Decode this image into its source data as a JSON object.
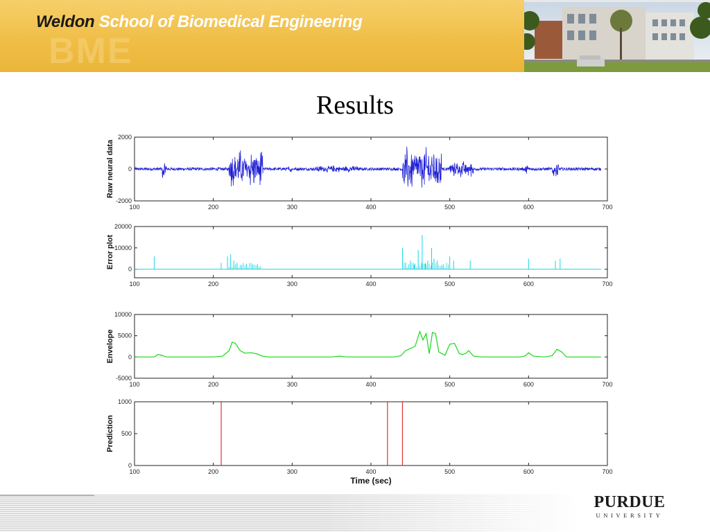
{
  "header": {
    "title_part1": "Weldon",
    "title_part2": "School of Biomedical Engineering",
    "watermark": "BME"
  },
  "slide": {
    "title": "Results"
  },
  "footer": {
    "logo_name": "PURDUE",
    "logo_sub": "UNIVERSITY"
  },
  "colors": {
    "banner": "#f2c14e",
    "raw": "#1f1fd6",
    "error": "#19d6e6",
    "envelope": "#19d619",
    "prediction": "#e03030"
  },
  "chart_data": [
    {
      "type": "line",
      "ylabel": "Raw neural data",
      "xlim": [
        100,
        700
      ],
      "ylim": [
        -2000,
        2000
      ],
      "xticks": [
        "100",
        "200",
        "300",
        "400",
        "500",
        "600",
        "700"
      ],
      "yticks": [
        "2000",
        "0",
        "-2000"
      ],
      "ytick_values": [
        2000,
        0,
        -2000
      ],
      "color": "#1f1fd6",
      "baseline": 0,
      "style": "signal",
      "bursts": [
        {
          "start": 135,
          "end": 140,
          "amp": 700
        },
        {
          "start": 220,
          "end": 263,
          "amp": 1300
        },
        {
          "start": 295,
          "end": 300,
          "amp": 250
        },
        {
          "start": 330,
          "end": 384,
          "amp": 250
        },
        {
          "start": 440,
          "end": 490,
          "amp": 1500
        },
        {
          "start": 500,
          "end": 530,
          "amp": 600
        },
        {
          "start": 595,
          "end": 600,
          "amp": 300
        },
        {
          "start": 630,
          "end": 638,
          "amp": 600
        }
      ]
    },
    {
      "type": "line",
      "ylabel": "Error plot",
      "xlim": [
        100,
        700
      ],
      "ylim": [
        -4000,
        20000
      ],
      "xticks": [
        "100",
        "200",
        "300",
        "400",
        "500",
        "600",
        "700"
      ],
      "yticks": [
        "20000",
        "10000",
        "0"
      ],
      "ytick_values": [
        20000,
        10000,
        0
      ],
      "color": "#19d6e6",
      "baseline": 0,
      "style": "spikes",
      "spikes": [
        [
          125,
          6000
        ],
        [
          210,
          3000
        ],
        [
          218,
          6000
        ],
        [
          222,
          7000
        ],
        [
          226,
          4000
        ],
        [
          230,
          3000
        ],
        [
          236,
          2000
        ],
        [
          242,
          2500
        ],
        [
          250,
          2000
        ],
        [
          256,
          2500
        ],
        [
          440,
          10000
        ],
        [
          444,
          3000
        ],
        [
          450,
          4000
        ],
        [
          455,
          2000
        ],
        [
          460,
          9000
        ],
        [
          465,
          16000
        ],
        [
          469,
          3000
        ],
        [
          472,
          4000
        ],
        [
          477,
          10000
        ],
        [
          480,
          5000
        ],
        [
          484,
          4000
        ],
        [
          490,
          2000
        ],
        [
          500,
          6000
        ],
        [
          505,
          4000
        ],
        [
          526,
          4000
        ],
        [
          600,
          5000
        ],
        [
          634,
          4000
        ],
        [
          640,
          5000
        ]
      ]
    },
    {
      "type": "line",
      "ylabel": "Envelope",
      "xlim": [
        100,
        700
      ],
      "ylim": [
        -5000,
        10000
      ],
      "xticks": [
        "100",
        "200",
        "300",
        "400",
        "500",
        "600",
        "700"
      ],
      "yticks": [
        "10000",
        "5000",
        "0",
        "-5000"
      ],
      "ytick_values": [
        10000,
        5000,
        0,
        -5000
      ],
      "color": "#19d619",
      "baseline": 0,
      "style": "envelope",
      "points": [
        [
          100,
          0
        ],
        [
          125,
          0
        ],
        [
          130,
          600
        ],
        [
          136,
          300
        ],
        [
          140,
          0
        ],
        [
          200,
          0
        ],
        [
          212,
          200
        ],
        [
          220,
          1500
        ],
        [
          224,
          3500
        ],
        [
          228,
          3200
        ],
        [
          234,
          1500
        ],
        [
          240,
          900
        ],
        [
          248,
          1000
        ],
        [
          256,
          700
        ],
        [
          262,
          200
        ],
        [
          270,
          0
        ],
        [
          350,
          0
        ],
        [
          360,
          200
        ],
        [
          370,
          0
        ],
        [
          430,
          0
        ],
        [
          438,
          300
        ],
        [
          444,
          1500
        ],
        [
          450,
          2000
        ],
        [
          456,
          2500
        ],
        [
          462,
          6000
        ],
        [
          466,
          4000
        ],
        [
          470,
          5500
        ],
        [
          474,
          800
        ],
        [
          478,
          5800
        ],
        [
          482,
          5500
        ],
        [
          486,
          1200
        ],
        [
          494,
          400
        ],
        [
          500,
          3000
        ],
        [
          506,
          3200
        ],
        [
          512,
          800
        ],
        [
          516,
          600
        ],
        [
          520,
          800
        ],
        [
          524,
          1500
        ],
        [
          530,
          200
        ],
        [
          540,
          0
        ],
        [
          590,
          0
        ],
        [
          596,
          300
        ],
        [
          600,
          1000
        ],
        [
          606,
          200
        ],
        [
          620,
          0
        ],
        [
          630,
          300
        ],
        [
          636,
          1800
        ],
        [
          642,
          1200
        ],
        [
          648,
          0
        ],
        [
          692,
          0
        ]
      ]
    },
    {
      "type": "line",
      "ylabel": "Prediction",
      "xlabel": "Time (sec)",
      "xlim": [
        100,
        700
      ],
      "ylim": [
        0,
        1000
      ],
      "xticks": [
        "100",
        "200",
        "300",
        "400",
        "500",
        "600",
        "700"
      ],
      "yticks": [
        "1000",
        "500",
        "0"
      ],
      "ytick_values": [
        1000,
        500,
        0
      ],
      "color": "#e03030",
      "baseline": 0,
      "style": "events",
      "events": [
        210,
        421,
        440
      ]
    }
  ]
}
